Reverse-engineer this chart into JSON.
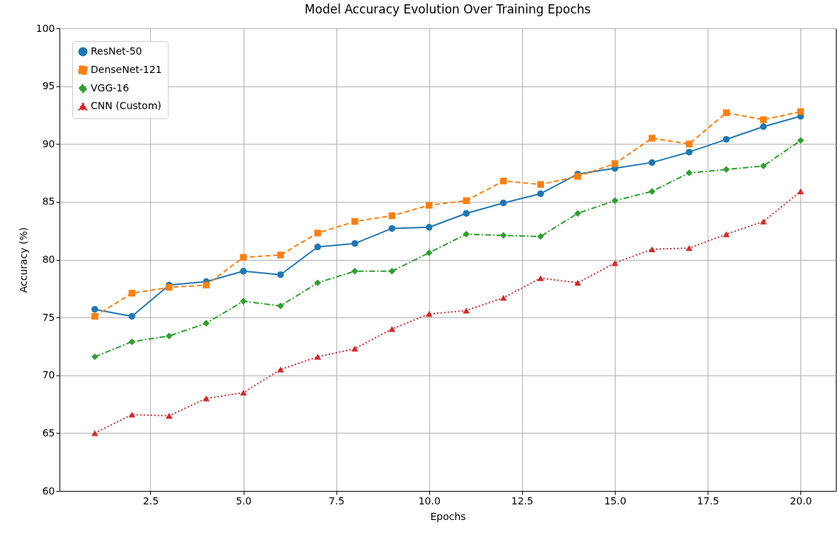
{
  "chart_data": {
    "type": "line",
    "title": "Model Accuracy Evolution Over Training Epochs",
    "xlabel": "Epochs",
    "ylabel": "Accuracy (%)",
    "x": [
      1,
      2,
      3,
      4,
      5,
      6,
      7,
      8,
      9,
      10,
      11,
      12,
      13,
      14,
      15,
      16,
      17,
      18,
      19,
      20
    ],
    "series": [
      {
        "name": "ResNet-50",
        "color": "#1f77b4",
        "marker": "circle",
        "line_style": "solid",
        "values": [
          75.7,
          75.1,
          77.8,
          78.1,
          79.0,
          78.7,
          81.1,
          81.4,
          82.7,
          82.8,
          84.0,
          84.9,
          85.7,
          87.4,
          87.9,
          88.4,
          89.3,
          90.4,
          91.5,
          92.4
        ]
      },
      {
        "name": "DenseNet-121",
        "color": "#ff7f0e",
        "marker": "square",
        "line_style": "dashed",
        "values": [
          75.1,
          77.1,
          77.6,
          77.8,
          80.2,
          80.4,
          82.3,
          83.3,
          83.8,
          84.7,
          85.1,
          86.8,
          86.5,
          87.2,
          88.3,
          90.5,
          90.0,
          92.7,
          92.1,
          92.8
        ]
      },
      {
        "name": "VGG-16",
        "color": "#2ca02c",
        "marker": "diamond",
        "line_style": "dashdot",
        "values": [
          71.6,
          72.9,
          73.4,
          74.5,
          76.4,
          76.0,
          78.0,
          79.0,
          79.0,
          80.6,
          82.2,
          82.1,
          82.0,
          84.0,
          85.1,
          85.9,
          87.5,
          87.8,
          88.1,
          90.3
        ]
      },
      {
        "name": "CNN (Custom)",
        "color": "#d62728",
        "marker": "triangle",
        "line_style": "dotted",
        "values": [
          65.0,
          66.6,
          66.5,
          68.0,
          68.5,
          70.5,
          71.6,
          72.3,
          74.0,
          75.3,
          75.6,
          76.7,
          78.4,
          78.0,
          79.7,
          80.9,
          81.0,
          82.2,
          83.3,
          85.9
        ]
      }
    ],
    "xlim": [
      0.05,
      20.95
    ],
    "xticks": [
      2.5,
      {
        "value": 5,
        "label": "5.0"
      },
      7.5,
      {
        "value": 10,
        "label": "10.0"
      },
      12.5,
      {
        "value": 15,
        "label": "15.0"
      },
      17.5,
      {
        "value": 20,
        "label": "20.0"
      }
    ],
    "ylim": [
      60,
      100
    ],
    "yticks": [
      60,
      65,
      70,
      75,
      80,
      85,
      90,
      95,
      100
    ],
    "grid": true,
    "legend": "top left"
  }
}
